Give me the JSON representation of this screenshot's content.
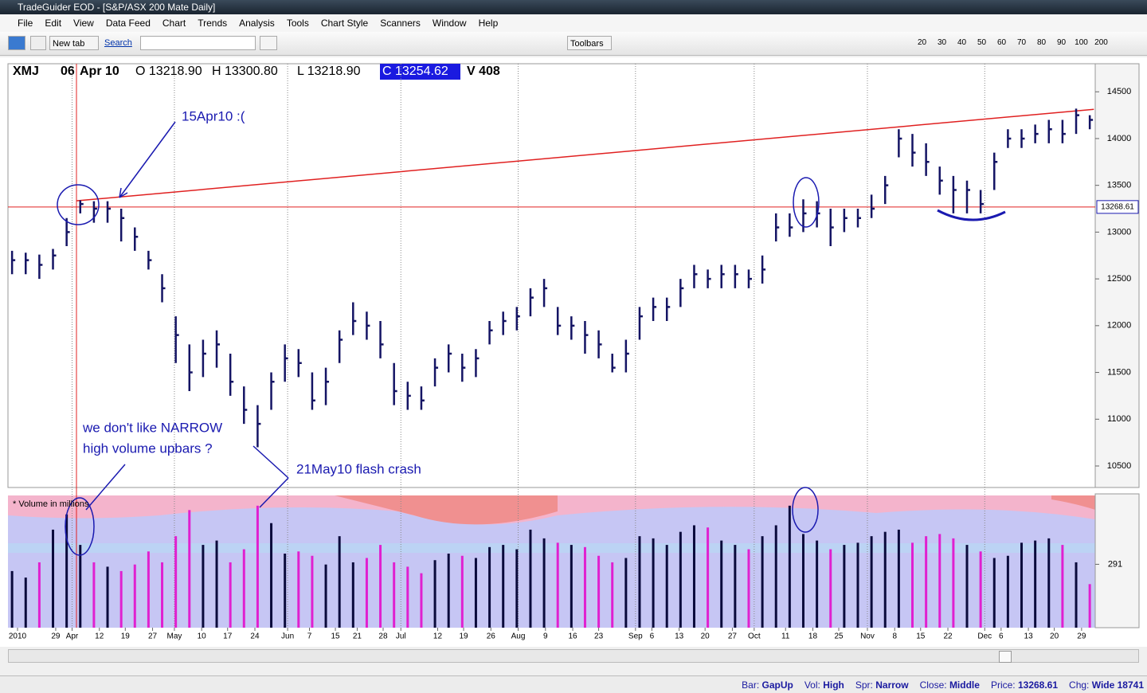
{
  "window": {
    "title": "TradeGuider EOD - [S&P/ASX 200 Mate Daily]"
  },
  "menu": [
    "File",
    "Edit",
    "View",
    "Data Feed",
    "Chart",
    "Trends",
    "Analysis",
    "Tools",
    "Chart Style",
    "Scanners",
    "Window",
    "Help"
  ],
  "toolbar": {
    "new_tab": "New tab",
    "search": "Search",
    "toolbars": "Toolbars",
    "zoom": [
      "20",
      "30",
      "40",
      "50",
      "60",
      "70",
      "80",
      "90",
      "100",
      "200"
    ]
  },
  "header": {
    "symbol": "XMJ",
    "day": "06",
    "month_year": "Apr 10",
    "open": "O 13218.90",
    "high": "H 13300.80",
    "low": "L 13218.90",
    "close": "C 13254.62",
    "volume": "V 408"
  },
  "chart_data": {
    "type": "ohlc",
    "xlim": [
      -0.3,
      79.4
    ],
    "xticks": [
      {
        "value": 0.4,
        "label": "2010"
      },
      {
        "value": 3.2,
        "label": "29"
      },
      {
        "value": 4.4,
        "label": "Apr"
      },
      {
        "value": 6.4,
        "label": "12"
      },
      {
        "value": 8.3,
        "label": "19"
      },
      {
        "value": 10.3,
        "label": "27"
      },
      {
        "value": 11.9,
        "label": "May"
      },
      {
        "value": 13.9,
        "label": "10"
      },
      {
        "value": 15.8,
        "label": "17"
      },
      {
        "value": 17.8,
        "label": "24"
      },
      {
        "value": 20.2,
        "label": "Jun"
      },
      {
        "value": 21.8,
        "label": "7"
      },
      {
        "value": 23.7,
        "label": "15"
      },
      {
        "value": 25.3,
        "label": "21"
      },
      {
        "value": 27.2,
        "label": "28"
      },
      {
        "value": 28.5,
        "label": "Jul"
      },
      {
        "value": 31.2,
        "label": "12"
      },
      {
        "value": 33.1,
        "label": "19"
      },
      {
        "value": 35.1,
        "label": "26"
      },
      {
        "value": 37.1,
        "label": "Aug"
      },
      {
        "value": 39.1,
        "label": "9"
      },
      {
        "value": 41.1,
        "label": "16"
      },
      {
        "value": 43.0,
        "label": "23"
      },
      {
        "value": 45.7,
        "label": "Sep"
      },
      {
        "value": 46.9,
        "label": "6"
      },
      {
        "value": 48.9,
        "label": "13"
      },
      {
        "value": 50.8,
        "label": "20"
      },
      {
        "value": 52.8,
        "label": "27"
      },
      {
        "value": 54.4,
        "label": "Oct"
      },
      {
        "value": 56.7,
        "label": "11"
      },
      {
        "value": 58.7,
        "label": "18"
      },
      {
        "value": 60.6,
        "label": "25"
      },
      {
        "value": 62.7,
        "label": "Nov"
      },
      {
        "value": 64.7,
        "label": "8"
      },
      {
        "value": 66.6,
        "label": "15"
      },
      {
        "value": 68.6,
        "label": "22"
      },
      {
        "value": 71.3,
        "label": "Dec"
      },
      {
        "value": 72.5,
        "label": "6"
      },
      {
        "value": 74.5,
        "label": "13"
      },
      {
        "value": 76.4,
        "label": "20"
      },
      {
        "value": 78.4,
        "label": "29"
      }
    ],
    "ylim": [
      10270,
      14800
    ],
    "yticks": [
      10500,
      11000,
      11500,
      12000,
      12500,
      13000,
      13500,
      14000,
      14500
    ],
    "price": {
      "color": "#141464",
      "high": [
        12800,
        12780,
        12760,
        12820,
        13150,
        13340,
        13330,
        13330,
        13250,
        13050,
        12800,
        12550,
        12100,
        11800,
        11850,
        11950,
        11700,
        11350,
        11150,
        11500,
        11800,
        11750,
        11500,
        11550,
        11950,
        12250,
        12150,
        12050,
        11600,
        11400,
        11350,
        11650,
        11800,
        11700,
        11750,
        12050,
        12150,
        12200,
        12400,
        12500,
        12200,
        12100,
        12050,
        11950,
        11700,
        11850,
        12200,
        12300,
        12300,
        12500,
        12650,
        12600,
        12650,
        12650,
        12600,
        12750,
        13200,
        13200,
        13350,
        13330,
        13250,
        13250,
        13250,
        13400,
        13600,
        14100,
        14050,
        13950,
        13700,
        13600,
        13550,
        13450,
        13850,
        14100,
        14100,
        14150,
        14200,
        14200,
        14320,
        14250
      ],
      "low": [
        12550,
        12550,
        12500,
        12600,
        12850,
        13200,
        13100,
        13100,
        12900,
        12800,
        12600,
        12250,
        11600,
        11300,
        11450,
        11550,
        11250,
        10950,
        10700,
        11100,
        11400,
        11450,
        11100,
        11150,
        11600,
        11900,
        11850,
        11650,
        11150,
        11100,
        11100,
        11350,
        11500,
        11400,
        11450,
        11800,
        11900,
        11950,
        12100,
        12200,
        11900,
        11850,
        11700,
        11650,
        11500,
        11500,
        11850,
        12050,
        12050,
        12200,
        12400,
        12400,
        12400,
        12400,
        12400,
        12450,
        12900,
        12950,
        13000,
        13050,
        12850,
        13000,
        13050,
        13150,
        13300,
        13800,
        13700,
        13600,
        13400,
        13200,
        13200,
        13200,
        13450,
        13900,
        13900,
        13950,
        13950,
        13950,
        14050,
        14100
      ],
      "close": [
        12700,
        12700,
        12650,
        12750,
        13000,
        13300,
        13250,
        13250,
        13150,
        12950,
        12700,
        12400,
        11900,
        11500,
        11700,
        11800,
        11400,
        11100,
        10950,
        11400,
        11650,
        11600,
        11200,
        11400,
        11850,
        12050,
        12000,
        11800,
        11300,
        11250,
        11200,
        11550,
        11700,
        11550,
        11650,
        11950,
        12050,
        12100,
        12300,
        12400,
        12000,
        12000,
        11900,
        11800,
        11550,
        11700,
        12100,
        12200,
        12200,
        12400,
        12550,
        12500,
        12550,
        12550,
        12500,
        12600,
        13050,
        13050,
        13200,
        13200,
        13050,
        13150,
        13150,
        13250,
        13500,
        14000,
        13850,
        13750,
        13550,
        13450,
        13450,
        13300,
        13750,
        14000,
        14000,
        14050,
        14100,
        14050,
        14250,
        14200
      ]
    },
    "price_line": {
      "value": 13268.61,
      "label": "13268.61",
      "color": "#e02020"
    },
    "trendline": {
      "x": [
        4.7,
        79.3
      ],
      "y": [
        13334,
        14313
      ],
      "color": "#e02020"
    },
    "volume": {
      "title": "* Volume in millions",
      "ylim": [
        0,
        607
      ],
      "yticks": [
        291
      ],
      "up_color": "#0a0a3c",
      "down_color": "#e020d0",
      "values": [
        260,
        230,
        300,
        450,
        520,
        380,
        300,
        280,
        260,
        290,
        350,
        300,
        420,
        540,
        380,
        400,
        300,
        360,
        560,
        480,
        340,
        350,
        330,
        290,
        420,
        300,
        320,
        380,
        300,
        280,
        250,
        310,
        340,
        330,
        320,
        370,
        380,
        360,
        450,
        410,
        390,
        380,
        370,
        330,
        300,
        320,
        420,
        410,
        380,
        440,
        470,
        460,
        400,
        380,
        360,
        420,
        470,
        560,
        430,
        400,
        360,
        380,
        390,
        420,
        440,
        450,
        390,
        420,
        430,
        410,
        380,
        350,
        320,
        330,
        390,
        400,
        410,
        380,
        300,
        200
      ]
    },
    "annotations": [
      "15Apr10 :(",
      "we don't like NARROW",
      "high volume upbars ?",
      "21May10 flash crash"
    ]
  },
  "status": [
    {
      "label": "Bar:",
      "value": "GapUp"
    },
    {
      "label": "Vol:",
      "value": "High"
    },
    {
      "label": "Spr:",
      "value": "Narrow"
    },
    {
      "label": "Close:",
      "value": "Middle"
    },
    {
      "label": "Price:",
      "value": "13268.61"
    },
    {
      "label": "Chg:",
      "value": "Wide 18741"
    }
  ]
}
